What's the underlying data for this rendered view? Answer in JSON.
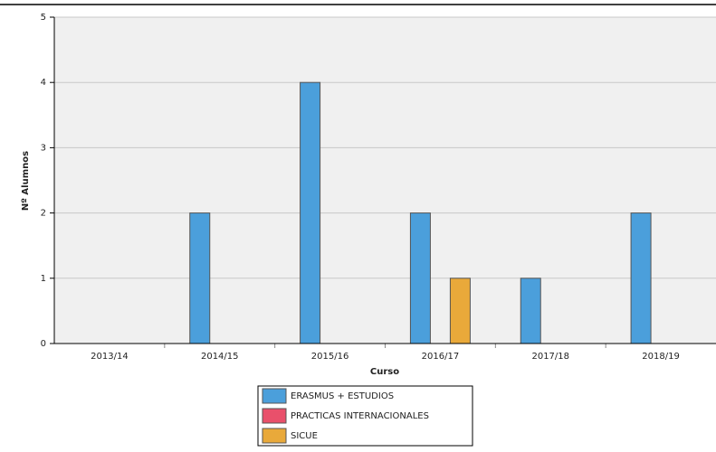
{
  "chart_data": {
    "type": "bar",
    "categories": [
      "2013/14",
      "2014/15",
      "2015/16",
      "2016/17",
      "2017/18",
      "2018/19"
    ],
    "series": [
      {
        "name": "ERASMUS + ESTUDIOS",
        "color": "#4b9fdb",
        "values": [
          0,
          2,
          4,
          2,
          1,
          2
        ]
      },
      {
        "name": "PRACTICAS INTERNACIONALES",
        "color": "#e9506b",
        "values": [
          0,
          0,
          0,
          0,
          0,
          0
        ]
      },
      {
        "name": "SICUE",
        "color": "#e9a93a",
        "values": [
          0,
          0,
          0,
          1,
          0,
          0
        ]
      }
    ],
    "xlabel": "Curso",
    "ylabel": "Nº Alumnos",
    "ylim": [
      0,
      5
    ],
    "yticks": [
      0,
      1,
      2,
      3,
      4,
      5
    ],
    "grid": true,
    "legend": "bottom"
  }
}
